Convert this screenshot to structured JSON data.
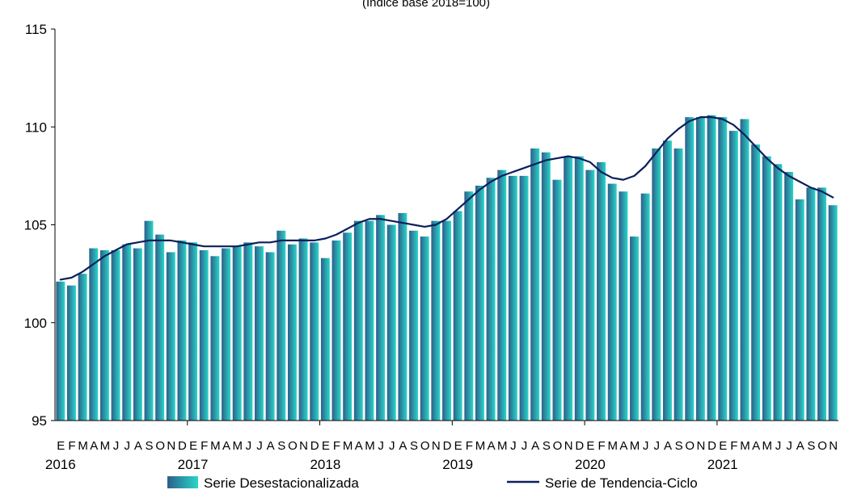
{
  "chart_data": {
    "type": "bar",
    "subtitle": "(Índice base 2018=100)",
    "ylim": [
      95,
      115
    ],
    "yticks": [
      "95",
      "100",
      "105",
      "110",
      "115"
    ],
    "grid": false,
    "legend_position": "bottom",
    "month_letters": [
      "E",
      "F",
      "M",
      "A",
      "M",
      "J",
      "J",
      "A",
      "S",
      "O",
      "N",
      "D"
    ],
    "years": [
      "2016",
      "2017",
      "2018",
      "2019",
      "2020",
      "2021"
    ],
    "colors": {
      "bar_dark": "#2c5f8a",
      "bar_light": "#2ad6c9",
      "line": "#0b1f5c",
      "axis": "#000000"
    },
    "series": [
      {
        "name": "Serie Desestacionalizada",
        "type": "bar",
        "values": [
          102.1,
          101.9,
          102.5,
          103.8,
          103.7,
          103.7,
          104.0,
          103.8,
          105.2,
          104.5,
          103.6,
          104.2,
          104.1,
          103.7,
          103.4,
          103.8,
          103.9,
          104.1,
          103.9,
          103.6,
          104.7,
          104.0,
          104.3,
          104.1,
          103.3,
          104.2,
          104.6,
          105.2,
          105.2,
          105.5,
          105.0,
          105.6,
          104.7,
          104.4,
          105.2,
          105.2,
          105.7,
          106.7,
          107.0,
          107.4,
          107.8,
          107.5,
          107.5,
          108.9,
          108.7,
          107.3,
          108.5,
          108.5,
          107.8,
          108.2,
          107.1,
          106.7,
          104.4,
          106.6,
          108.9,
          109.3,
          108.9,
          110.5,
          110.5,
          110.6,
          110.5,
          109.8,
          110.4,
          109.1,
          108.5,
          108.1,
          107.7,
          106.3,
          106.9,
          106.9,
          106.0
        ]
      },
      {
        "name": "Serie de Tendencia-Ciclo",
        "type": "line",
        "values": [
          102.2,
          102.3,
          102.6,
          103.0,
          103.4,
          103.7,
          104.0,
          104.1,
          104.2,
          104.2,
          104.2,
          104.1,
          104.0,
          103.9,
          103.9,
          103.9,
          103.9,
          104.0,
          104.1,
          104.1,
          104.2,
          104.2,
          104.2,
          104.2,
          104.3,
          104.5,
          104.8,
          105.1,
          105.3,
          105.3,
          105.2,
          105.1,
          105.0,
          104.9,
          105.0,
          105.3,
          105.8,
          106.3,
          106.8,
          107.2,
          107.5,
          107.7,
          107.9,
          108.1,
          108.3,
          108.4,
          108.5,
          108.4,
          108.2,
          107.7,
          107.4,
          107.3,
          107.5,
          108.0,
          108.7,
          109.4,
          109.9,
          110.3,
          110.5,
          110.5,
          110.4,
          110.1,
          109.6,
          109.0,
          108.4,
          107.9,
          107.5,
          107.2,
          106.9,
          106.7,
          106.4
        ]
      }
    ]
  }
}
